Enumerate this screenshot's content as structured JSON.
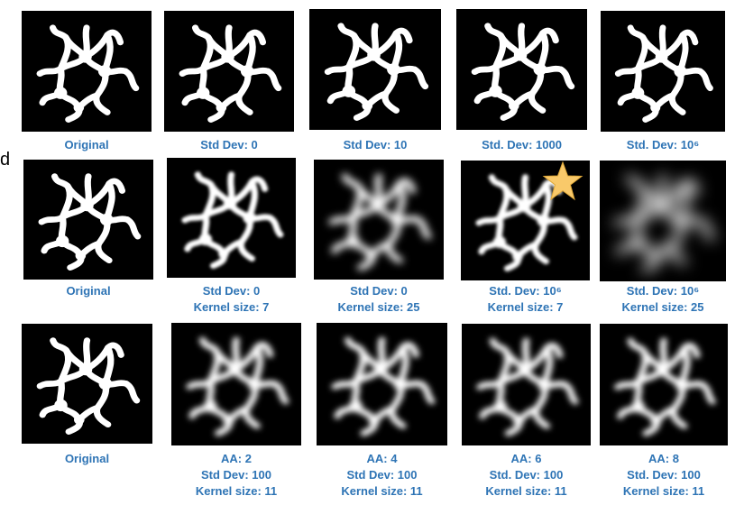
{
  "edge_fragment": "d",
  "rows": [
    {
      "panels": [
        {
          "blur": 0,
          "caption": [
            "Original"
          ]
        },
        {
          "blur": 0,
          "caption": [
            "Std Dev: 0"
          ]
        },
        {
          "blur": 0,
          "caption": [
            "Std Dev: 10"
          ]
        },
        {
          "blur": 0,
          "caption": [
            "Std. Dev: 1000"
          ]
        },
        {
          "blur": 0,
          "caption": [
            "Std. Dev: 10⁶"
          ]
        }
      ]
    },
    {
      "panels": [
        {
          "blur": 0,
          "caption": [
            "Original"
          ]
        },
        {
          "blur": 1.2,
          "caption": [
            "Std Dev: 0",
            "Kernel size: 7"
          ]
        },
        {
          "blur": 3.2,
          "caption": [
            "Std Dev: 0",
            "Kernel size: 25"
          ]
        },
        {
          "blur": 1.3,
          "caption": [
            "Std. Dev: 10⁶",
            "Kernel size: 7"
          ],
          "starred": true
        },
        {
          "blur": 6,
          "caption": [
            "Std. Dev: 10⁶",
            "Kernel size: 25"
          ]
        }
      ]
    },
    {
      "panels": [
        {
          "blur": 0,
          "caption": [
            "Original"
          ]
        },
        {
          "blur": 2.4,
          "caption": [
            "AA: 2",
            "Std Dev: 100",
            "Kernel size: 11"
          ]
        },
        {
          "blur": 2.4,
          "caption": [
            "AA: 4",
            "Std Dev: 100",
            "Kernel size: 11"
          ]
        },
        {
          "blur": 2.4,
          "caption": [
            "AA: 6",
            "Std. Dev: 100",
            "Kernel size: 11"
          ]
        },
        {
          "blur": 2.4,
          "caption": [
            "AA: 8",
            "Std. Dev: 100",
            "Kernel size: 11"
          ]
        }
      ]
    }
  ],
  "colors": {
    "caption": "#2e74b5",
    "tile_bg": "#000000",
    "shape": "#ffffff",
    "star": "#f9c96a"
  },
  "icons": {
    "marker": "star-icon"
  }
}
